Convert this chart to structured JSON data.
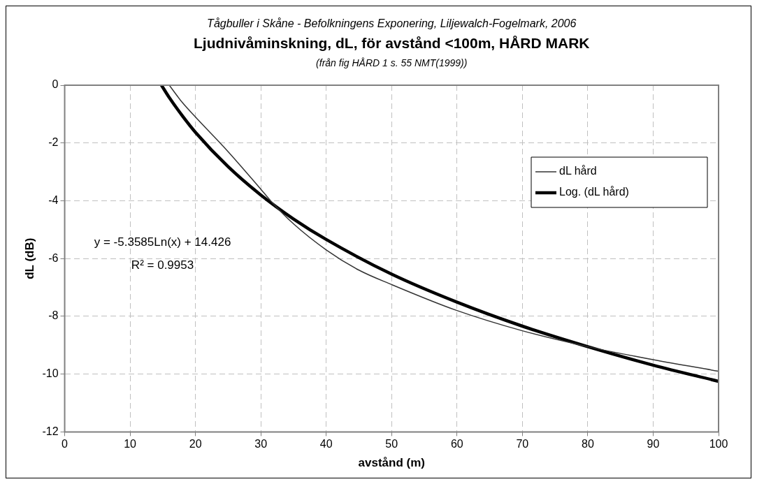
{
  "chart_data": {
    "type": "line",
    "subtitle": "Tågbuller i Skåne - Befolkningens Exponering, Liljewalch-Fogelmark, 2006",
    "title": "Ljudnivåminskning, dL, för avstånd <100m, HÅRD MARK",
    "annotations": [
      "(från fig HÅRD 1 s. 55 NMT(1999))",
      "y = -5.3585Ln(x) + 14.426",
      "R² = 0.9953"
    ],
    "xlabel": "avstånd (m)",
    "ylabel": "dL (dB)",
    "xlim": [
      0,
      100
    ],
    "xticks": [
      0,
      10,
      20,
      30,
      40,
      50,
      60,
      70,
      80,
      90,
      100
    ],
    "ylim": [
      -12,
      0
    ],
    "yticks": [
      -12,
      -10,
      -8,
      -6,
      -4,
      -2,
      0
    ],
    "grid": true,
    "legend": "top right",
    "marker": "none",
    "line_style": "solid",
    "series": [
      {
        "name": "dL hård",
        "color": "#333333",
        "x": [
          16,
          18,
          20,
          25,
          30,
          31.5,
          35,
          40,
          45,
          50,
          60,
          70,
          80,
          90,
          100
        ],
        "values": [
          0,
          -0.6,
          -1.1,
          -2.3,
          -3.6,
          -4.0,
          -4.8,
          -5.7,
          -6.4,
          -6.9,
          -7.8,
          -8.5,
          -9.05,
          -9.5,
          -9.9
        ]
      },
      {
        "name": "Log. (dL hård)",
        "type": "line",
        "color": "#000000",
        "x": [
          14.8,
          16,
          18,
          20,
          25,
          30,
          35,
          40,
          50,
          60,
          70,
          80,
          90,
          100
        ],
        "values": [
          0,
          -0.43,
          -1.06,
          -1.63,
          -2.82,
          -3.8,
          -4.63,
          -5.34,
          -6.54,
          -7.51,
          -8.34,
          -9.05,
          -9.69,
          -10.25
        ]
      }
    ]
  }
}
